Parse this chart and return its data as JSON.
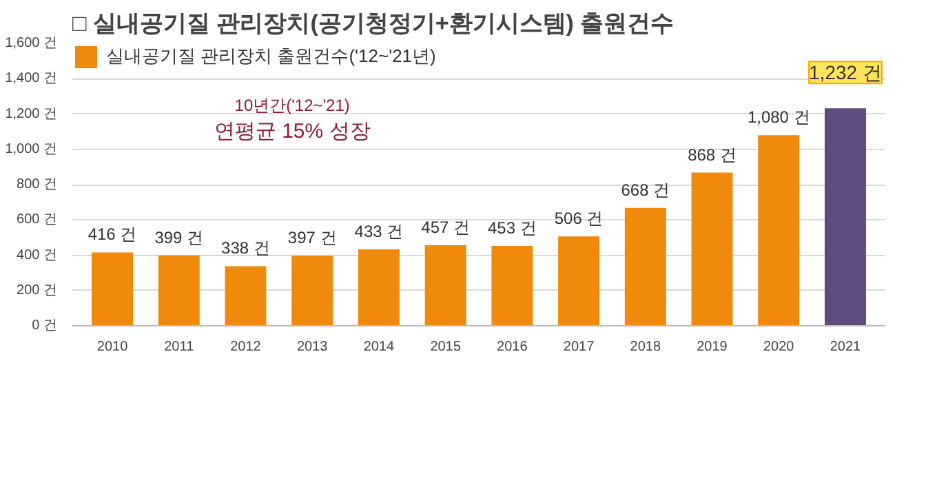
{
  "chart_data": {
    "type": "bar",
    "title": "□ 실내공기질 관리장치(공기청정기+환기시스템) 출원건수",
    "categories": [
      "2010",
      "2011",
      "2012",
      "2013",
      "2014",
      "2015",
      "2016",
      "2017",
      "2018",
      "2019",
      "2020",
      "2021"
    ],
    "series": [
      {
        "name": "실내공기질 관리장치 출원건수('12~'21년)",
        "values": [
          416,
          399,
          338,
          397,
          433,
          457,
          453,
          506,
          668,
          868,
          1080,
          1232
        ],
        "colors": [
          "#f08a0c",
          "#f08a0c",
          "#f08a0c",
          "#f08a0c",
          "#f08a0c",
          "#f08a0c",
          "#f08a0c",
          "#f08a0c",
          "#f08a0c",
          "#f08a0c",
          "#f08a0c",
          "#5f4b7e"
        ]
      }
    ],
    "value_labels": [
      "416 건",
      "399 건",
      "338 건",
      "397 건",
      "433 건",
      "457 건",
      "453 건",
      "506 건",
      "668 건",
      "868 건",
      "1,080 건",
      "1,232 건"
    ],
    "ylim": [
      0,
      1600
    ],
    "yticks": [
      {
        "value": 0,
        "label": "0 건"
      },
      {
        "value": 200,
        "label": "200 건"
      },
      {
        "value": 400,
        "label": "400 건"
      },
      {
        "value": 600,
        "label": "600 건"
      },
      {
        "value": 800,
        "label": "800 건"
      },
      {
        "value": 1000,
        "label": "1,000 건"
      },
      {
        "value": 1200,
        "label": "1,200 건"
      },
      {
        "value": 1400,
        "label": "1,400 건"
      },
      {
        "value": 1600,
        "label": "1,600 건"
      }
    ],
    "grid": "y",
    "legend": "top left",
    "annotations": [
      "10년간('12~'21)",
      "연평균 15% 성장"
    ]
  }
}
